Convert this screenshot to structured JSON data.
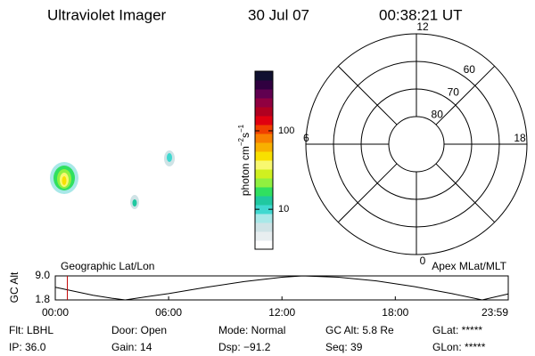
{
  "header": {
    "title": "Ultraviolet Imager",
    "date": "30 Jul 07",
    "time": "00:38:21 UT"
  },
  "colorbar": {
    "label_parts": [
      "photon cm",
      "−2",
      "s",
      "−1"
    ],
    "log": true,
    "lim": [
      3.1,
      575
    ],
    "ticks": [
      10,
      100
    ],
    "colors": [
      "#ffffff",
      "#e8eef0",
      "#cfe3e6",
      "#a8e8e8",
      "#40d8d0",
      "#20c8a0",
      "#30e060",
      "#90f040",
      "#d0f020",
      "#f8f870",
      "#f8e000",
      "#f8b000",
      "#f88000",
      "#f04000",
      "#e00010",
      "#b00020",
      "#900040",
      "#600050",
      "#300040",
      "#101030"
    ]
  },
  "polar": {
    "lat_min": 50,
    "rings": [
      80,
      70,
      60
    ],
    "mlt_labels": [
      12,
      18,
      6,
      0
    ]
  },
  "orbit": {
    "left_label": "Geographic Lat/Lon",
    "right_label": "Apex MLat/MLT",
    "y_label": "GC Alt",
    "ylim": [
      1.8,
      9.0
    ],
    "yticks": [
      {
        "value": 9.0,
        "label": "9.0"
      },
      1.8
    ],
    "xlim": [
      0,
      23.98
    ],
    "xticks": [
      {
        "value": 0,
        "label": "00:00"
      },
      {
        "value": 6,
        "label": "06:00"
      },
      {
        "value": 12,
        "label": "12:00"
      },
      {
        "value": 18,
        "label": "18:00"
      },
      {
        "value": 23.98,
        "label": "23:59"
      }
    ],
    "x": [
      0,
      1,
      2,
      3,
      3.7,
      5,
      6,
      8,
      10,
      12,
      13.1,
      15,
      17,
      19,
      21,
      22.6,
      23.98
    ],
    "y": [
      5.6,
      4.4,
      3.2,
      2.3,
      1.8,
      2.9,
      3.7,
      5.6,
      7.3,
      8.6,
      9.0,
      8.6,
      7.5,
      5.8,
      3.7,
      1.8,
      3.6
    ],
    "marker_x": 0.64,
    "marker_color": "#c00000"
  },
  "info": [
    [
      "Flt: LBHL",
      "Door: Open",
      "Mode: Normal",
      "GC Alt: 5.8 Re",
      "GLat: *****"
    ],
    [
      "IP: 36.0",
      "Gain: 14",
      "Dsp: −91.2",
      "Seq: 39",
      "GLon: *****"
    ]
  ]
}
